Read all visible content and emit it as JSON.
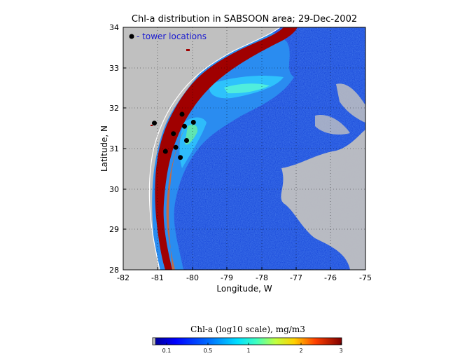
{
  "map": {
    "title": "Chl-a distribution in SABSOON area; 29-Dec-2002",
    "xlabel": "Longitude, W",
    "ylabel": "Latitude, N",
    "x_ticks": [
      "-82",
      "-81",
      "-80",
      "-79",
      "-78",
      "-77",
      "-76",
      "-75"
    ],
    "y_ticks": [
      "34",
      "33",
      "32",
      "31",
      "30",
      "29",
      "28"
    ],
    "xlim": [
      -82,
      -75
    ],
    "ylim": [
      28,
      34
    ],
    "grid": "dotted",
    "legend_text": "- tower locations",
    "towers": [
      {
        "lon": -81.1,
        "lat": 31.63
      },
      {
        "lon": -80.78,
        "lat": 30.93
      },
      {
        "lon": -80.55,
        "lat": 31.37
      },
      {
        "lon": -80.48,
        "lat": 31.03
      },
      {
        "lon": -80.35,
        "lat": 30.78
      },
      {
        "lon": -80.3,
        "lat": 31.85
      },
      {
        "lon": -80.23,
        "lat": 31.55
      },
      {
        "lon": -80.17,
        "lat": 31.2
      },
      {
        "lon": -79.97,
        "lat": 31.65
      }
    ],
    "colors": {
      "land": "#c0c0c0",
      "ocean": "#1040d8",
      "shelf": "#2a8cf0",
      "coastal": "#900000",
      "tower": "#000000"
    }
  },
  "colorbar": {
    "title": "Chl-a (log10 scale), mg/m3",
    "ticks": [
      "0.1",
      "0.5",
      "1",
      "2",
      "3"
    ],
    "range": [
      0.07,
      3
    ]
  }
}
